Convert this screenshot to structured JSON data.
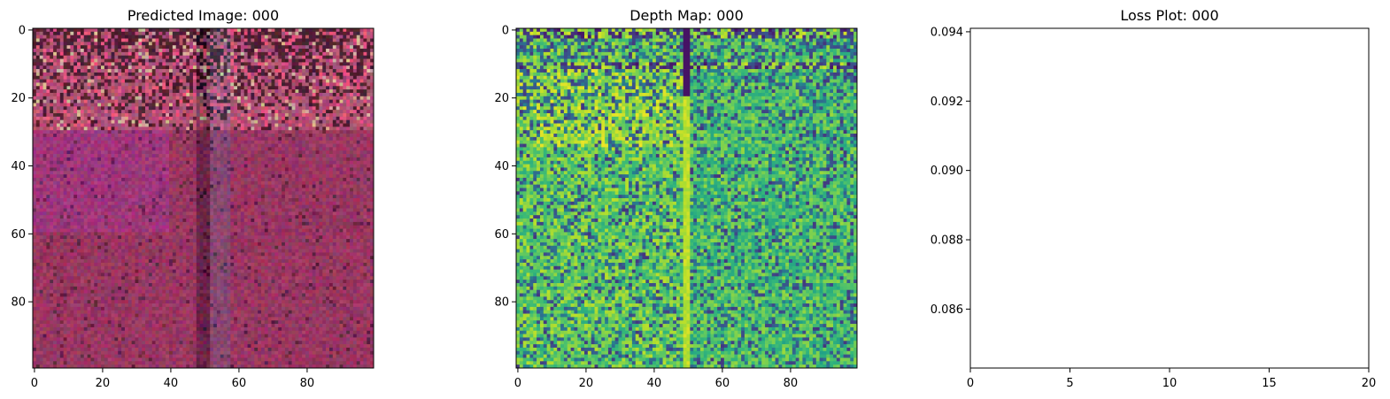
{
  "chart_data": [
    {
      "type": "heatmap",
      "title": "Predicted Image: 000",
      "colormap": "rgb-image",
      "grid_size": [
        100,
        100
      ],
      "xlim": [
        -0.5,
        99.5
      ],
      "ylim": [
        99.5,
        -0.5
      ],
      "xticks": [
        0,
        20,
        40,
        60,
        80
      ],
      "yticks": [
        0,
        20,
        40,
        60,
        80
      ],
      "xtick_labels": [
        "0",
        "20",
        "40",
        "60",
        "80"
      ],
      "ytick_labels": [
        "0",
        "20",
        "40",
        "60",
        "80"
      ],
      "grid": false
    },
    {
      "type": "heatmap",
      "title": "Depth Map: 000",
      "colormap": "viridis",
      "grid_size": [
        100,
        100
      ],
      "xlim": [
        -0.5,
        99.5
      ],
      "ylim": [
        99.5,
        -0.5
      ],
      "xticks": [
        0,
        20,
        40,
        60,
        80
      ],
      "yticks": [
        0,
        20,
        40,
        60,
        80
      ],
      "xtick_labels": [
        "0",
        "20",
        "40",
        "60",
        "80"
      ],
      "ytick_labels": [
        "0",
        "20",
        "40",
        "60",
        "80"
      ],
      "grid": false
    },
    {
      "type": "line",
      "title": "Loss Plot: 000",
      "series": [
        {
          "x": [],
          "values": []
        }
      ],
      "xlim": [
        0,
        20
      ],
      "ylim": [
        0.0843,
        0.0941
      ],
      "xticks": [
        0,
        5,
        10,
        15,
        20
      ],
      "yticks": [
        0.086,
        0.088,
        0.09,
        0.092,
        0.094
      ],
      "xtick_labels": [
        "0",
        "5",
        "10",
        "15",
        "20"
      ],
      "ytick_labels": [
        "0.086",
        "0.088",
        "0.090",
        "0.092",
        "0.094"
      ],
      "grid": false
    }
  ]
}
